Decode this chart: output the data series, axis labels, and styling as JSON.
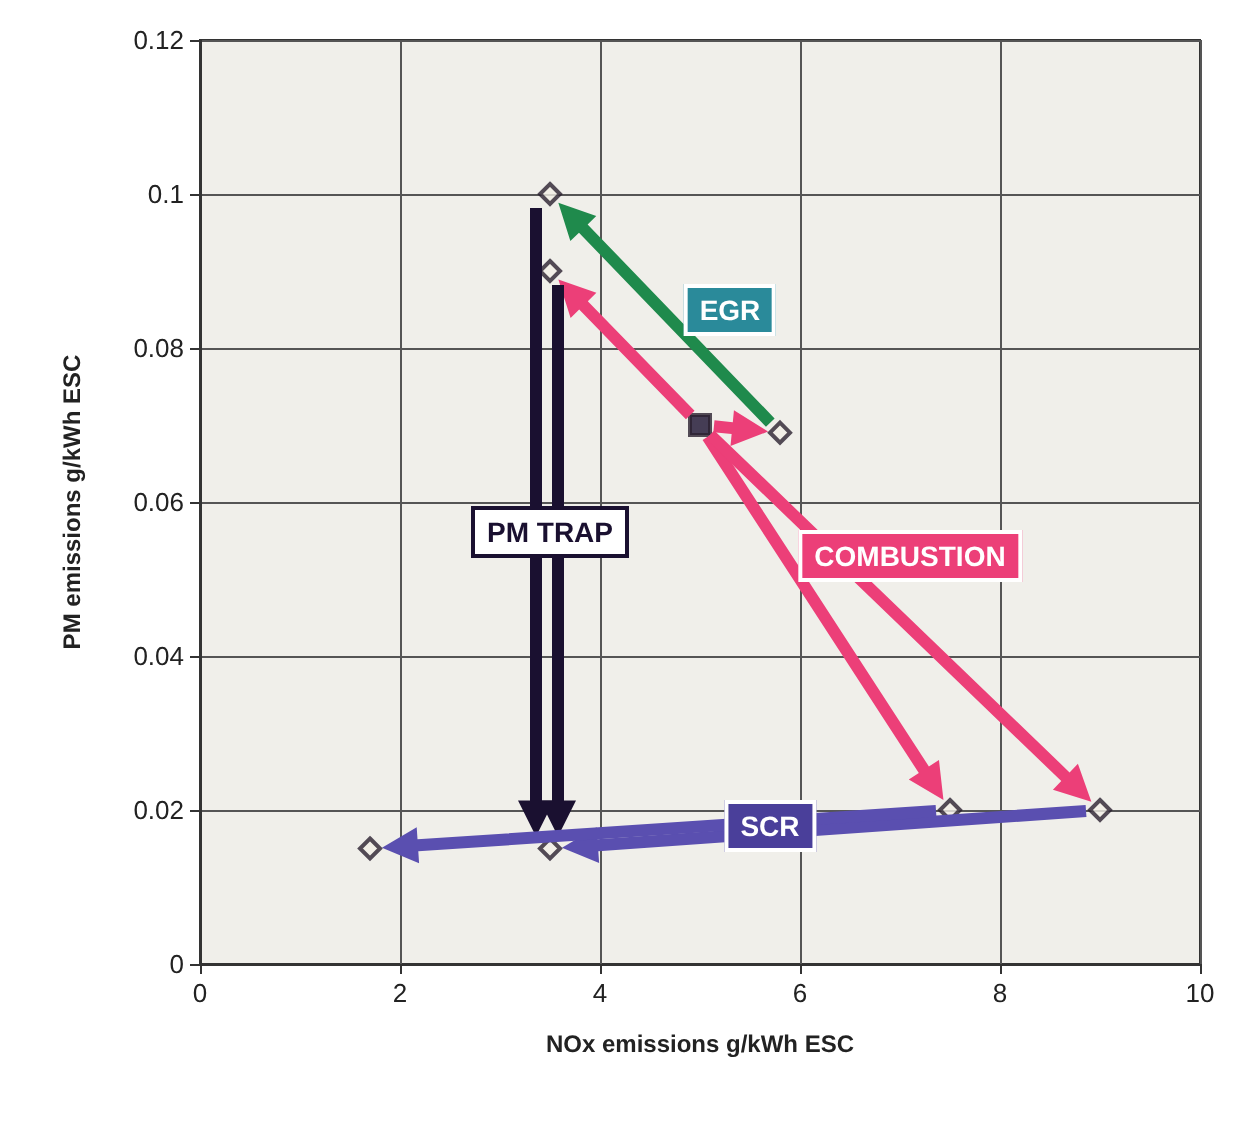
{
  "chart_data": {
    "type": "scatter",
    "xlabel": "NOx emissions g/kWh ESC",
    "ylabel": "PM emissions g/kWh ESC",
    "xlim": [
      0,
      10
    ],
    "xticks": [
      0,
      2,
      4,
      6,
      8,
      10
    ],
    "ylim": [
      0,
      0.12
    ],
    "yticks": [
      0,
      0.02,
      0.04,
      0.06,
      0.08,
      0.1,
      0.12
    ],
    "grid": true,
    "series": [
      {
        "type": "scatter",
        "color": "#f2efe6",
        "marker": "diamond",
        "x": [
          3.5,
          3.5,
          5.8,
          7.5,
          9,
          3.5,
          1.7
        ],
        "values": [
          0.1,
          0.09,
          0.069,
          0.02,
          0.02,
          0.015,
          0.015
        ]
      },
      {
        "type": "scatter",
        "color": "#1a1030",
        "marker": "square",
        "x": [
          5
        ],
        "values": [
          0.07
        ]
      }
    ],
    "annotations": [
      "EGR",
      "COMBUSTION",
      "PM TRAP",
      "SCR"
    ]
  }
}
